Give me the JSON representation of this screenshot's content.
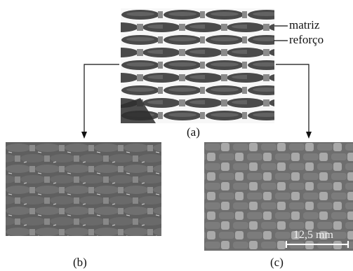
{
  "figure": {
    "panels": [
      {
        "id": "a",
        "label": "(a)"
      },
      {
        "id": "b",
        "label": "(b)"
      },
      {
        "id": "c",
        "label": "(c)"
      }
    ],
    "annotations": {
      "matrix": "matriz",
      "reinforcement": "reforço"
    },
    "scale_bar": {
      "text": "12,5 mm"
    },
    "colors": {
      "line": "#111111",
      "panel_a_bg": "#f7f7f7",
      "panel_a_tow": "#4a4a4a",
      "panel_b_bg": "#5f5f5f",
      "panel_c_bg": "#6e6e6e",
      "scale_bar": "#ffffff"
    }
  }
}
